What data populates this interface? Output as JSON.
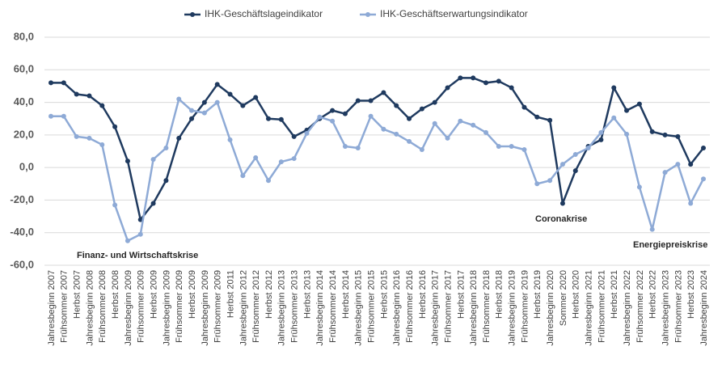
{
  "chart_data": {
    "type": "line",
    "categories": [
      "Jahresbeginn 2007",
      "Frühsommer 2007",
      "Herbst 2007",
      "Jahresbeginn 2008",
      "Frühsommer 2008",
      "Herbst 2008",
      "Jahresbeginn 2009",
      "Frühsommer 2009",
      "Herbst 2009",
      "Jahresbeginn 2009",
      "Frühsommer 2009",
      "Herbst 2009",
      "Jahresbeginn 2009",
      "Frühsommer 2009",
      "Herbst 2011",
      "Jahresbeginn 2012",
      "Frühsommer 2012",
      "Herbst 2012",
      "Jahresbeginn 2013",
      "Frühsommer 2013",
      "Herbst 2013",
      "Jahresbeginn 2014",
      "Frühsommer 2014",
      "Herbst 2014",
      "Jahresbeginn 2015",
      "Frühsommer 2015",
      "Herbst 2015",
      "Jahresbeginn 2016",
      "Frühsommer 2016",
      "Herbst 2016",
      "Jahresbeginn 2017",
      "Frühsommer 2017",
      "Herbst 2017",
      "Jahresbeginn 2018",
      "Frühsommer 2018",
      "Herbst 2018",
      "Jahresbeginn 2019",
      "Frühsommer 2019",
      "Herbst 2019",
      "Jahresbeginn 2020",
      "Sommer 2020",
      "Herbst 2020",
      "Jahresbeginn 2021",
      "Frühsommer 2021",
      "Herbst 2021",
      "Jahresbeginn 2022",
      "Frühsommer 2022",
      "Herbst 2022",
      "Jahresbeginn 2023",
      "Frühsommer 2023",
      "Herbst 2023",
      "Jahresbeginn 2024"
    ],
    "series": [
      {
        "name": "IHK-Geschäftslageindikator",
        "color": "#1f3a5f",
        "values": [
          52,
          52,
          45,
          44,
          38,
          25,
          4,
          -32,
          -22,
          -8,
          18,
          30,
          40,
          51,
          45,
          38,
          43,
          30,
          29.5,
          19,
          23,
          30,
          35,
          33,
          41,
          41,
          46,
          38,
          30,
          36,
          40,
          49,
          55,
          55,
          52,
          53,
          49,
          37,
          31,
          29,
          -22,
          -2,
          13,
          17,
          49,
          35,
          39,
          22,
          20,
          19,
          2,
          12
        ]
      },
      {
        "name": "IHK-Geschäftserwartungsindikator",
        "color": "#8eaad6",
        "values": [
          31.5,
          31.5,
          19,
          18,
          14,
          -23,
          -45,
          -41,
          5,
          12,
          42,
          35,
          33.5,
          40,
          17,
          -5,
          6,
          -8,
          3.5,
          5.5,
          21,
          31,
          28.5,
          13,
          12,
          31.5,
          23.5,
          20.5,
          16,
          11,
          27,
          18,
          28.5,
          26,
          21.5,
          13,
          13,
          11,
          -10,
          -8,
          2,
          8,
          12,
          21.5,
          30.5,
          20.5,
          -12,
          -38,
          -3,
          2,
          -22,
          -7
        ]
      }
    ],
    "ylim": [
      -60,
      80
    ],
    "yticks": [
      {
        "value": -60,
        "label": "-60,0"
      },
      {
        "value": -40,
        "label": "-40,0"
      },
      {
        "value": -20,
        "label": "-20,0"
      },
      {
        "value": 0,
        "label": "0,0"
      },
      {
        "value": 20,
        "label": "20,0"
      },
      {
        "value": 40,
        "label": "40,0"
      },
      {
        "value": 60,
        "label": "60,0"
      },
      {
        "value": 80,
        "label": "80,0"
      }
    ],
    "grid": true,
    "legend": "top",
    "annotations": [
      "Finanz- und Wirtschaftskrise",
      "Coronakrise",
      "Energiepreiskrise"
    ]
  }
}
